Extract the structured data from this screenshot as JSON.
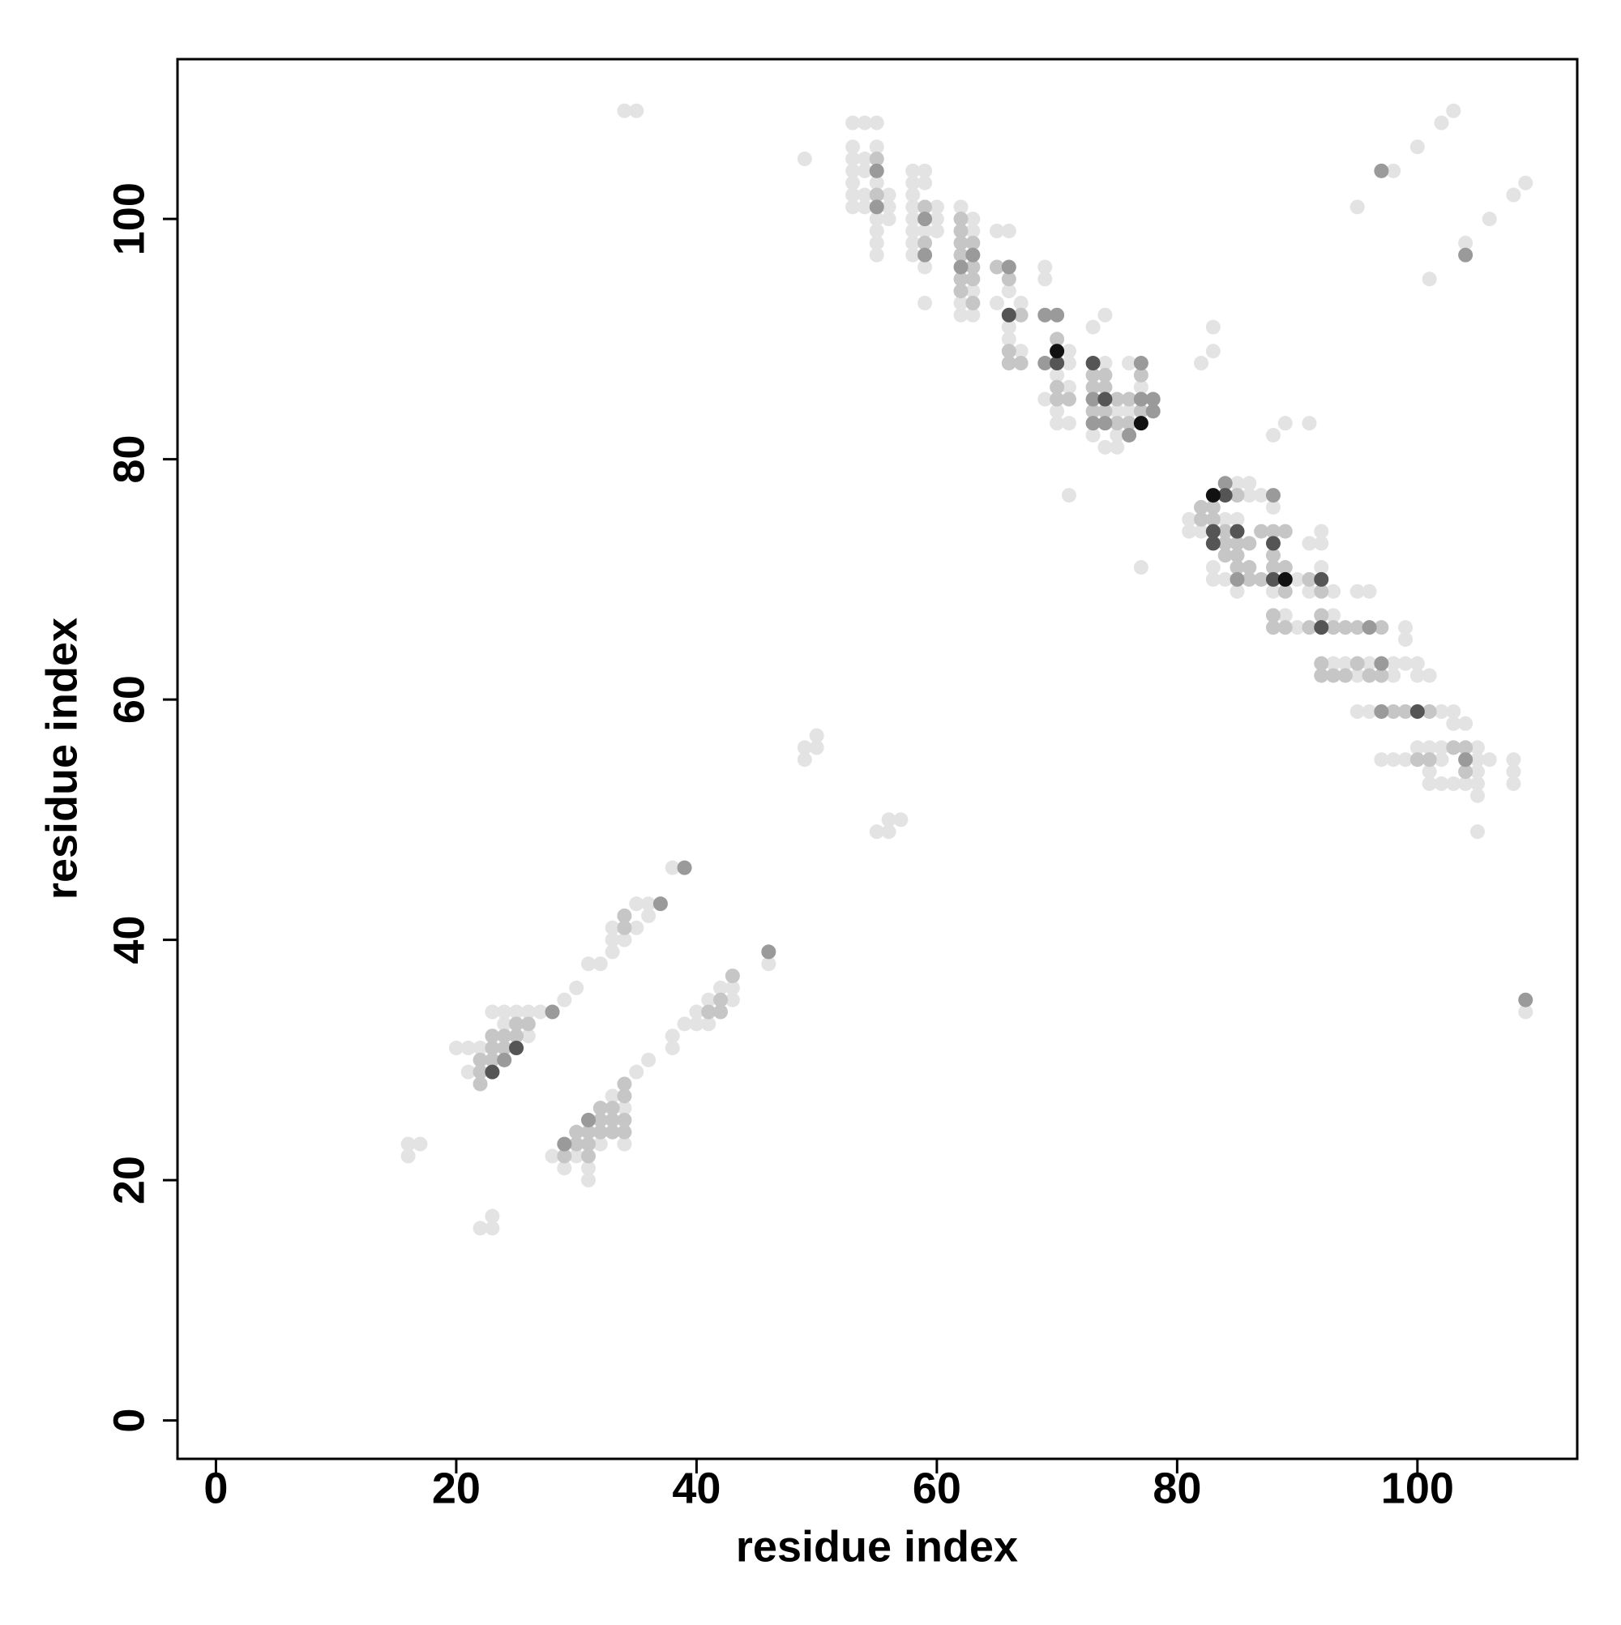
{
  "chart_data": {
    "type": "scatter",
    "x_label": "residue index",
    "y_label": "residue index",
    "xlim": [
      -3.2,
      113.3
    ],
    "ylim": [
      -3.2,
      113.3
    ],
    "xticks": [
      0,
      20,
      40,
      60,
      80,
      100
    ],
    "yticks": [
      0,
      20,
      40,
      60,
      80,
      100
    ],
    "grid": false,
    "series": [
      {
        "color": "#e3e3e3",
        "x": [
          34,
          35,
          49,
          53,
          53,
          53,
          53,
          53,
          53,
          53,
          54,
          54,
          54,
          54,
          54,
          55,
          55,
          55,
          55,
          55,
          55,
          55,
          56,
          56,
          56,
          58,
          58,
          58,
          58,
          58,
          58,
          58,
          58,
          59,
          59,
          59,
          59,
          59,
          60,
          60,
          60,
          62,
          62,
          62,
          63,
          63,
          63,
          63,
          65,
          65,
          66,
          66,
          66,
          66,
          67,
          67,
          69,
          69,
          69,
          70,
          70,
          70,
          71,
          71,
          71,
          71,
          73,
          73,
          74,
          74,
          74,
          75,
          75,
          75,
          76,
          76,
          77,
          82,
          83,
          83,
          71,
          77,
          88,
          89,
          91,
          81,
          81,
          82,
          83,
          83,
          84,
          84,
          85,
          85,
          85,
          86,
          86,
          87,
          88,
          88,
          89,
          90,
          90,
          91,
          91,
          92,
          92,
          92,
          93,
          93,
          93,
          94,
          95,
          95,
          95,
          96,
          96,
          96,
          97,
          98,
          98,
          98,
          99,
          99,
          99,
          99,
          100,
          100,
          100,
          101,
          101,
          101,
          101,
          102,
          102,
          102,
          102,
          103,
          103,
          103,
          103,
          104,
          104,
          105,
          105,
          105,
          105,
          105,
          105,
          106,
          108,
          108,
          108,
          95,
          98,
          100,
          101,
          102,
          103,
          104,
          106,
          108,
          109,
          109,
          16,
          16,
          17,
          20,
          21,
          21,
          22,
          22,
          23,
          23,
          23,
          24,
          24,
          25,
          26,
          26,
          27,
          29,
          30,
          31,
          32,
          33,
          33,
          33,
          34,
          35,
          35,
          36,
          36,
          38,
          28,
          29,
          30,
          31,
          31,
          32,
          33,
          34,
          34,
          35,
          36,
          38,
          38,
          39,
          40,
          40,
          41,
          41,
          42,
          43,
          43,
          46,
          49,
          49,
          50,
          50,
          55,
          56,
          56,
          57
        ],
        "y": [
          109,
          109,
          105,
          108,
          106,
          105,
          104,
          103,
          102,
          101,
          108,
          105,
          104,
          102,
          101,
          108,
          106,
          103,
          100,
          99,
          98,
          97,
          102,
          101,
          100,
          104,
          103,
          102,
          101,
          100,
          99,
          98,
          97,
          104,
          103,
          99,
          96,
          93,
          101,
          100,
          99,
          101,
          93,
          92,
          100,
          99,
          94,
          92,
          99,
          93,
          99,
          94,
          91,
          90,
          93,
          89,
          96,
          95,
          85,
          87,
          84,
          83,
          89,
          88,
          86,
          83,
          91,
          82,
          92,
          88,
          81,
          84,
          82,
          81,
          88,
          84,
          86,
          88,
          91,
          89,
          77,
          71,
          82,
          83,
          83,
          75,
          74,
          74,
          71,
          70,
          75,
          70,
          78,
          75,
          69,
          78,
          77,
          77,
          76,
          69,
          67,
          70,
          66,
          73,
          69,
          74,
          73,
          71,
          69,
          67,
          63,
          63,
          69,
          62,
          59,
          69,
          63,
          59,
          55,
          63,
          62,
          55,
          66,
          65,
          63,
          55,
          63,
          62,
          56,
          62,
          56,
          54,
          53,
          59,
          56,
          55,
          53,
          59,
          58,
          56,
          53,
          58,
          53,
          56,
          55,
          54,
          53,
          52,
          49,
          55,
          55,
          54,
          53,
          101,
          104,
          106,
          95,
          108,
          109,
          98,
          100,
          102,
          103,
          34,
          23,
          22,
          23,
          31,
          31,
          29,
          31,
          16,
          34,
          17,
          16,
          34,
          33,
          34,
          34,
          32,
          34,
          35,
          36,
          38,
          38,
          41,
          40,
          39,
          40,
          43,
          41,
          43,
          42,
          46,
          22,
          21,
          22,
          21,
          20,
          23,
          27,
          26,
          23,
          29,
          30,
          32,
          31,
          33,
          34,
          33,
          35,
          33,
          36,
          36,
          35,
          38,
          56,
          55,
          57,
          56,
          49,
          50,
          49,
          50
        ]
      },
      {
        "color": "#c6c6c6",
        "x": [
          55,
          55,
          59,
          59,
          62,
          62,
          62,
          62,
          62,
          62,
          63,
          63,
          63,
          63,
          65,
          66,
          66,
          66,
          67,
          67,
          70,
          70,
          70,
          71,
          73,
          73,
          73,
          74,
          74,
          74,
          75,
          75,
          76,
          76,
          77,
          77,
          82,
          82,
          83,
          83,
          84,
          84,
          84,
          85,
          85,
          85,
          85,
          86,
          86,
          86,
          87,
          87,
          88,
          88,
          88,
          88,
          88,
          89,
          89,
          89,
          89,
          91,
          91,
          92,
          92,
          92,
          92,
          93,
          93,
          94,
          94,
          95,
          95,
          96,
          97,
          97,
          98,
          99,
          100,
          101,
          101,
          103,
          104,
          104,
          22,
          22,
          22,
          23,
          23,
          23,
          24,
          24,
          25,
          25,
          26,
          33,
          33,
          33,
          34,
          34,
          34,
          34,
          34,
          32,
          32,
          32,
          31,
          31,
          31,
          30,
          30,
          29,
          41,
          42,
          42,
          43,
          34
        ],
        "y": [
          105,
          102,
          101,
          98,
          100,
          99,
          98,
          97,
          95,
          94,
          98,
          96,
          95,
          93,
          96,
          95,
          89,
          88,
          92,
          88,
          90,
          86,
          85,
          85,
          87,
          86,
          84,
          87,
          86,
          84,
          85,
          83,
          85,
          83,
          84,
          87,
          76,
          75,
          76,
          75,
          74,
          73,
          72,
          77,
          73,
          72,
          71,
          73,
          71,
          70,
          74,
          70,
          74,
          72,
          71,
          67,
          66,
          74,
          71,
          69,
          66,
          70,
          66,
          69,
          67,
          63,
          62,
          66,
          62,
          66,
          62,
          66,
          63,
          62,
          66,
          62,
          59,
          59,
          55,
          59,
          55,
          56,
          56,
          54,
          30,
          29,
          28,
          32,
          31,
          30,
          32,
          31,
          33,
          32,
          33,
          26,
          25,
          24,
          27,
          25,
          24,
          42,
          41,
          26,
          25,
          24,
          24,
          23,
          22,
          24,
          23,
          22,
          34,
          35,
          34,
          37,
          28
        ]
      },
      {
        "color": "#9a9a9a",
        "x": [
          55,
          55,
          59,
          59,
          62,
          63,
          66,
          69,
          69,
          70,
          73,
          73,
          74,
          76,
          77,
          77,
          78,
          78,
          84,
          85,
          88,
          96,
          97,
          97,
          24,
          28,
          37,
          39,
          29,
          31,
          46,
          104,
          104,
          109,
          97
        ],
        "y": [
          104,
          101,
          100,
          97,
          96,
          97,
          96,
          92,
          88,
          92,
          85,
          83,
          83,
          82,
          88,
          85,
          85,
          84,
          78,
          70,
          77,
          66,
          63,
          59,
          30,
          34,
          43,
          46,
          23,
          25,
          39,
          97,
          55,
          35,
          104
        ]
      },
      {
        "color": "#555555",
        "x": [
          66,
          70,
          73,
          74,
          83,
          83,
          84,
          85,
          88,
          88,
          92,
          92,
          100,
          23,
          25
        ],
        "y": [
          92,
          88,
          88,
          85,
          74,
          73,
          77,
          74,
          73,
          70,
          70,
          66,
          59,
          29,
          31
        ]
      },
      {
        "color": "#111111",
        "x": [
          70,
          77,
          83,
          89
        ],
        "y": [
          89,
          83,
          77,
          70
        ]
      }
    ]
  }
}
